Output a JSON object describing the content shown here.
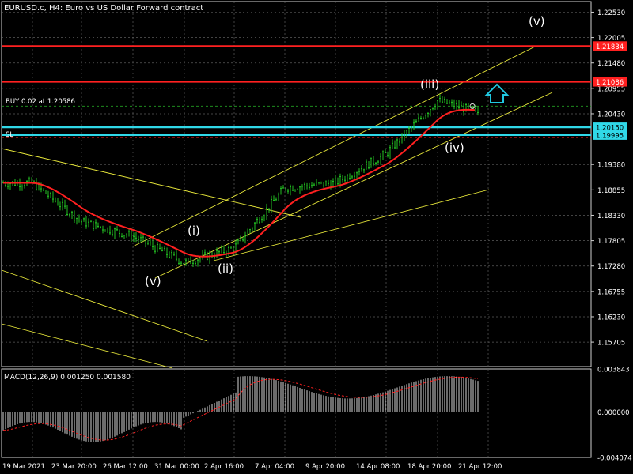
{
  "header": {
    "title": "EURUSD.c, H4:  Euro vs US Dollar Forward contract"
  },
  "main_chart": {
    "price_labels": [
      "1.22530",
      "1.22005",
      "1.21480",
      "1.20955",
      "1.20430",
      "1.19380",
      "1.18855",
      "1.18330",
      "1.17805",
      "1.17280",
      "1.16755",
      "1.16230",
      "1.15705"
    ],
    "price_range": [
      1.152,
      1.2275
    ],
    "levels": [
      {
        "name": "upper-red-level",
        "price": 1.2183,
        "label": "1.21834",
        "color": "#ff2020",
        "tag": true
      },
      {
        "name": "lower-red-level",
        "price": 1.2109,
        "label": "1.21086",
        "color": "#ff2020",
        "tag": true
      },
      {
        "name": "buy-level",
        "price": 1.20586,
        "label": "BUY 0.02 at 1.20586",
        "color": "#1e8a1e",
        "tag": false
      },
      {
        "name": "cyan-level",
        "price": 1.2015,
        "label": "1.20150",
        "color": "#30d8e8",
        "tag": true
      },
      {
        "name": "cyan-level-2",
        "price": 1.1999,
        "label": "1.19995",
        "color": "#30d8e8",
        "tag": true
      },
      {
        "name": "sl-level",
        "price": 1.1994,
        "label": "SL",
        "color": "#ff2020",
        "tag": false
      }
    ],
    "wave_labels": {
      "v_top": "(v)",
      "i": "(i)",
      "ii": "(ii)",
      "iii": "(iii)",
      "iv": "(iv)",
      "v_bottom": "(v)"
    },
    "arrow_color": "#20c8e0",
    "candle_color": "#22c022",
    "ma_color": "#ff2020",
    "trendline_color": "#e8e83a",
    "grid": true
  },
  "macd": {
    "title": "MACD(12,26,9) 0.001250 0.001580",
    "price_labels": [
      "0.003843",
      "0.000000",
      "-0.004074"
    ],
    "range": [
      -0.004074,
      0.003843
    ]
  },
  "time_axis": {
    "labels": [
      "19 Mar 2021",
      "23 Mar 20:00",
      "26 Mar 12:00",
      "31 Mar 00:00",
      "2 Apr 16:00",
      "7 Apr 04:00",
      "9 Apr 20:00",
      "14 Apr 08:00",
      "18 Apr 20:00",
      "21 Apr 12:00"
    ]
  },
  "chart_data": {
    "type": "candlestick",
    "title": "EURUSD.c, H4:  Euro vs US Dollar Forward contract",
    "x_labels": [
      "19 Mar 2021",
      "23 Mar 20:00",
      "26 Mar 12:00",
      "31 Mar 00:00",
      "2 Apr 16:00",
      "7 Apr 04:00",
      "9 Apr 20:00",
      "14 Apr 08:00",
      "18 Apr 20:00",
      "21 Apr 12:00"
    ],
    "y_range": [
      1.152,
      1.2275
    ],
    "close_anchors": [
      {
        "x": "19 Mar 2021",
        "close": 1.19
      },
      {
        "x": "23 Mar 20:00",
        "close": 1.182
      },
      {
        "x": "26 Mar 12:00",
        "close": 1.179
      },
      {
        "x": "31 Mar 00:00",
        "close": 1.1735
      },
      {
        "x": "2 Apr 16:00",
        "close": 1.1765
      },
      {
        "x": "7 Apr 04:00",
        "close": 1.189
      },
      {
        "x": "9 Apr 20:00",
        "close": 1.19
      },
      {
        "x": "14 Apr 08:00",
        "close": 1.196
      },
      {
        "x": "18 Apr 20:00",
        "close": 1.207
      },
      {
        "x": "21 Apr 12:00",
        "close": 1.204
      }
    ],
    "macd_range": [
      -0.004074,
      0.003843
    ],
    "macd_last": 0.00125,
    "signal_last": 0.00158
  }
}
